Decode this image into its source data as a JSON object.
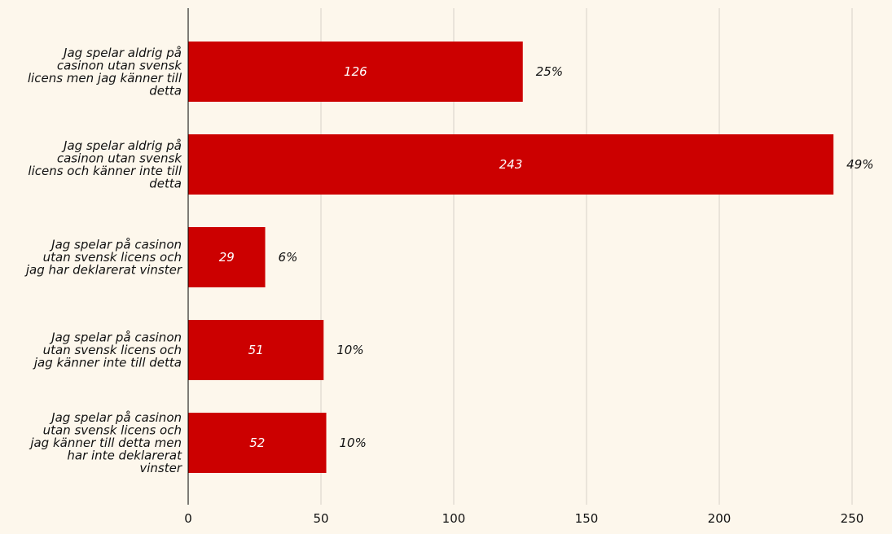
{
  "chart_data": {
    "type": "bar",
    "orientation": "horizontal",
    "categories": [
      [
        "Jag spelar aldrig på",
        "casinon utan svensk",
        "licens men jag känner till",
        "detta"
      ],
      [
        "Jag spelar aldrig på",
        "casinon utan svensk",
        "licens och känner inte till",
        "detta"
      ],
      [
        "Jag spelar på casinon",
        "utan svensk licens och",
        "jag har deklarerat vinster"
      ],
      [
        "Jag spelar på casinon",
        "utan svensk licens och",
        "jag känner inte till detta"
      ],
      [
        "Jag spelar på casinon",
        "utan svensk licens och",
        "jag känner till detta men",
        "har inte deklarerat",
        "vinster"
      ]
    ],
    "values": [
      126,
      243,
      29,
      51,
      52
    ],
    "value_labels": [
      "126",
      "243",
      "29",
      "51",
      "52"
    ],
    "percent_labels": [
      "25%",
      "49%",
      "6%",
      "10%",
      "10%"
    ],
    "xlim": [
      0,
      255
    ],
    "xticks": [
      0,
      50,
      100,
      150,
      200,
      250
    ],
    "xtick_labels": [
      "0",
      "50",
      "100",
      "150",
      "200",
      "250"
    ],
    "grid": "vertical",
    "colors": {
      "bar": "#cc0000",
      "background": "#fdf7ec",
      "grid": "#d6d2c8",
      "axis": "#000000",
      "value_text": "#ffffff",
      "text": "#111111"
    }
  }
}
